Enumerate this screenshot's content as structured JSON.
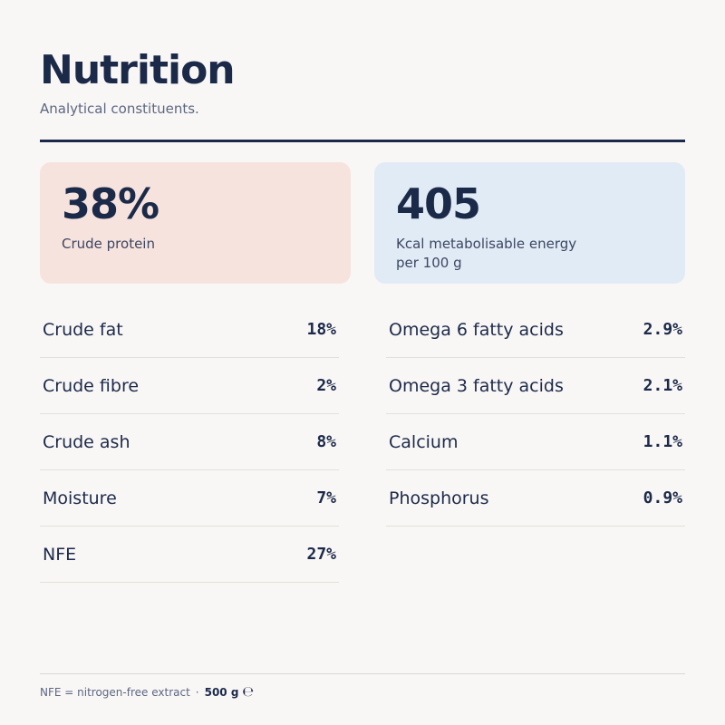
{
  "header": {
    "title": "Nutrition",
    "subtitle": "Analytical constituents."
  },
  "highlights": {
    "protein": {
      "value": "38%",
      "label": "Crude protein"
    },
    "energy": {
      "value": "405",
      "label_line1": "Kcal metabolisable energy",
      "label_line2": "per 100 g"
    }
  },
  "left_rows": [
    {
      "label": "Crude fat",
      "value": "18%"
    },
    {
      "label": "Crude fibre",
      "value": "2%"
    },
    {
      "label": "Crude ash",
      "value": "8%"
    },
    {
      "label": "Moisture",
      "value": "7%"
    },
    {
      "label": "NFE",
      "value": "27%"
    }
  ],
  "right_rows": [
    {
      "label": "Omega 6 fatty acids",
      "value": "2.9%"
    },
    {
      "label": "Omega 3 fatty acids",
      "value": "2.1%"
    },
    {
      "label": "Calcium",
      "value": "1.1%"
    },
    {
      "label": "Phosphorus",
      "value": "0.9%"
    }
  ],
  "footer": {
    "note": "NFE = nitrogen-free extract",
    "separator": "·",
    "weight": "500 g",
    "e_mark": "℮"
  },
  "colors": {
    "ink": "#1c2a4a",
    "protein_card": "#f7e3dd",
    "energy_card": "#e1ebf5",
    "background": "#f9f7f5"
  }
}
